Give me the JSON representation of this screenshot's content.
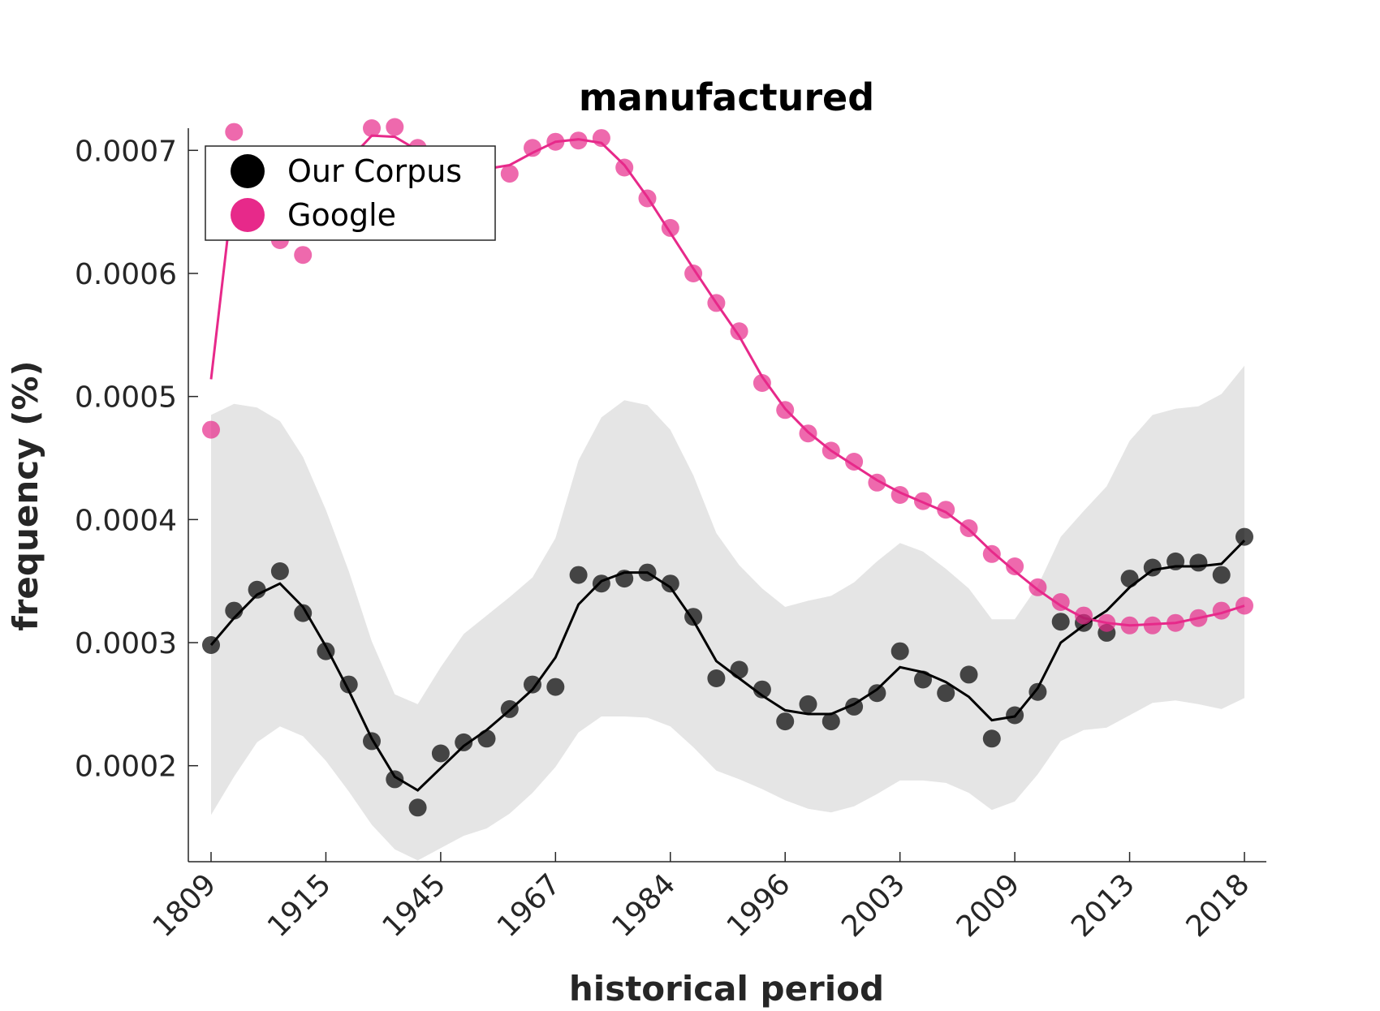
{
  "chart_data": {
    "type": "line",
    "title": "manufactured",
    "xlabel": "historical period",
    "ylabel": "frequency (%)",
    "x_tick_labels": [
      "1809",
      "1915",
      "1945",
      "1967",
      "1984",
      "1996",
      "2003",
      "2009",
      "2013",
      "2018"
    ],
    "y_ticks": [
      0.0002,
      0.0003,
      0.0004,
      0.0005,
      0.0006,
      0.0007
    ],
    "y_tick_labels": [
      "0.0002",
      "0.0003",
      "0.0004",
      "0.0005",
      "0.0006",
      "0.0007"
    ],
    "ylim": [
      0.000122,
      0.000718
    ],
    "n_points": 46,
    "legend": {
      "position": "top-left",
      "entries": [
        {
          "label": "Our Corpus",
          "color": "#000000"
        },
        {
          "label": "Google",
          "color": "#e7298a"
        }
      ]
    },
    "series": [
      {
        "name": "Our Corpus",
        "color": "#000000",
        "points": [
          0.000298,
          0.000326,
          0.000343,
          0.000358,
          0.000324,
          0.000293,
          0.000266,
          0.00022,
          0.000189,
          0.000166,
          0.00021,
          0.000219,
          0.000222,
          0.000246,
          0.000266,
          0.000264,
          0.000355,
          0.000348,
          0.000352,
          0.000357,
          0.000348,
          0.000321,
          0.000271,
          0.000278,
          0.000262,
          0.000236,
          0.00025,
          0.000236,
          0.000248,
          0.000259,
          0.000293,
          0.00027,
          0.000259,
          0.000274,
          0.000222,
          0.000241,
          0.00026,
          0.000317,
          0.000316,
          0.000308,
          0.000352,
          0.000361,
          0.000366,
          0.000365,
          0.000355,
          0.000386
        ],
        "smoothed": [
          0.000298,
          0.00032,
          0.000339,
          0.000348,
          0.000329,
          0.000297,
          0.000261,
          0.000222,
          0.000191,
          0.00018,
          0.000198,
          0.000216,
          0.000229,
          0.000245,
          0.000262,
          0.000288,
          0.000331,
          0.00035,
          0.000357,
          0.000357,
          0.000345,
          0.000318,
          0.000285,
          0.000271,
          0.000257,
          0.000245,
          0.000242,
          0.000242,
          0.00025,
          0.000262,
          0.00028,
          0.000276,
          0.000268,
          0.000256,
          0.000237,
          0.00024,
          0.000263,
          0.0003,
          0.000314,
          0.000326,
          0.000345,
          0.000359,
          0.000362,
          0.000362,
          0.000364,
          0.000383
        ],
        "band_upper": [
          0.000485,
          0.000494,
          0.000491,
          0.00048,
          0.000451,
          0.000408,
          0.000358,
          0.000301,
          0.000258,
          0.00025,
          0.00028,
          0.000307,
          0.000322,
          0.000337,
          0.000353,
          0.000385,
          0.000448,
          0.000483,
          0.000497,
          0.000493,
          0.000473,
          0.000436,
          0.000389,
          0.000363,
          0.000344,
          0.000329,
          0.000334,
          0.000338,
          0.000349,
          0.000366,
          0.000381,
          0.000374,
          0.00036,
          0.000344,
          0.000319,
          0.000319,
          0.000346,
          0.000386,
          0.000407,
          0.000427,
          0.000464,
          0.000485,
          0.00049,
          0.000492,
          0.000502,
          0.000525
        ],
        "band_lower": [
          0.00016,
          0.000191,
          0.000219,
          0.000232,
          0.000224,
          0.000204,
          0.000179,
          0.000152,
          0.000132,
          0.000123,
          0.000133,
          0.000143,
          0.000149,
          0.000161,
          0.000178,
          0.000199,
          0.000227,
          0.00024,
          0.00024,
          0.000239,
          0.000232,
          0.000215,
          0.000196,
          0.000189,
          0.000181,
          0.000172,
          0.000165,
          0.000162,
          0.000167,
          0.000177,
          0.000188,
          0.000188,
          0.000186,
          0.000178,
          0.000164,
          0.000171,
          0.000193,
          0.00022,
          0.000229,
          0.000231,
          0.000241,
          0.000251,
          0.000253,
          0.00025,
          0.000246,
          0.000255
        ]
      },
      {
        "name": "Google",
        "color": "#e7298a",
        "points": [
          0.000473,
          0.000715,
          0.000648,
          0.000627,
          0.000615,
          0.000662,
          0.000692,
          0.000718,
          0.000719,
          0.000702,
          0.000694,
          0.000686,
          0.000684,
          0.000681,
          0.000702,
          0.000707,
          0.000708,
          0.00071,
          0.000686,
          0.000661,
          0.000637,
          0.0006,
          0.000576,
          0.000553,
          0.000511,
          0.000489,
          0.00047,
          0.000456,
          0.000447,
          0.00043,
          0.00042,
          0.000415,
          0.000408,
          0.000393,
          0.000372,
          0.000362,
          0.000345,
          0.000333,
          0.000322,
          0.000316,
          0.000314,
          0.000314,
          0.000316,
          0.00032,
          0.000326,
          0.00033
        ],
        "smoothed": [
          0.000514,
          0.000674,
          0.000664,
          0.000649,
          0.00065,
          0.00067,
          0.000692,
          0.000712,
          0.000711,
          0.0007,
          0.00069,
          0.000686,
          0.000685,
          0.000688,
          0.000698,
          0.000707,
          0.000709,
          0.000706,
          0.000688,
          0.000662,
          0.000633,
          0.000604,
          0.000576,
          0.000549,
          0.000516,
          0.00049,
          0.000471,
          0.000456,
          0.000444,
          0.000432,
          0.000422,
          0.000414,
          0.000406,
          0.000392,
          0.000374,
          0.000358,
          0.000343,
          0.00033,
          0.00032,
          0.000316,
          0.000314,
          0.000315,
          0.000316,
          0.00032,
          0.000324,
          0.00033
        ]
      }
    ]
  }
}
